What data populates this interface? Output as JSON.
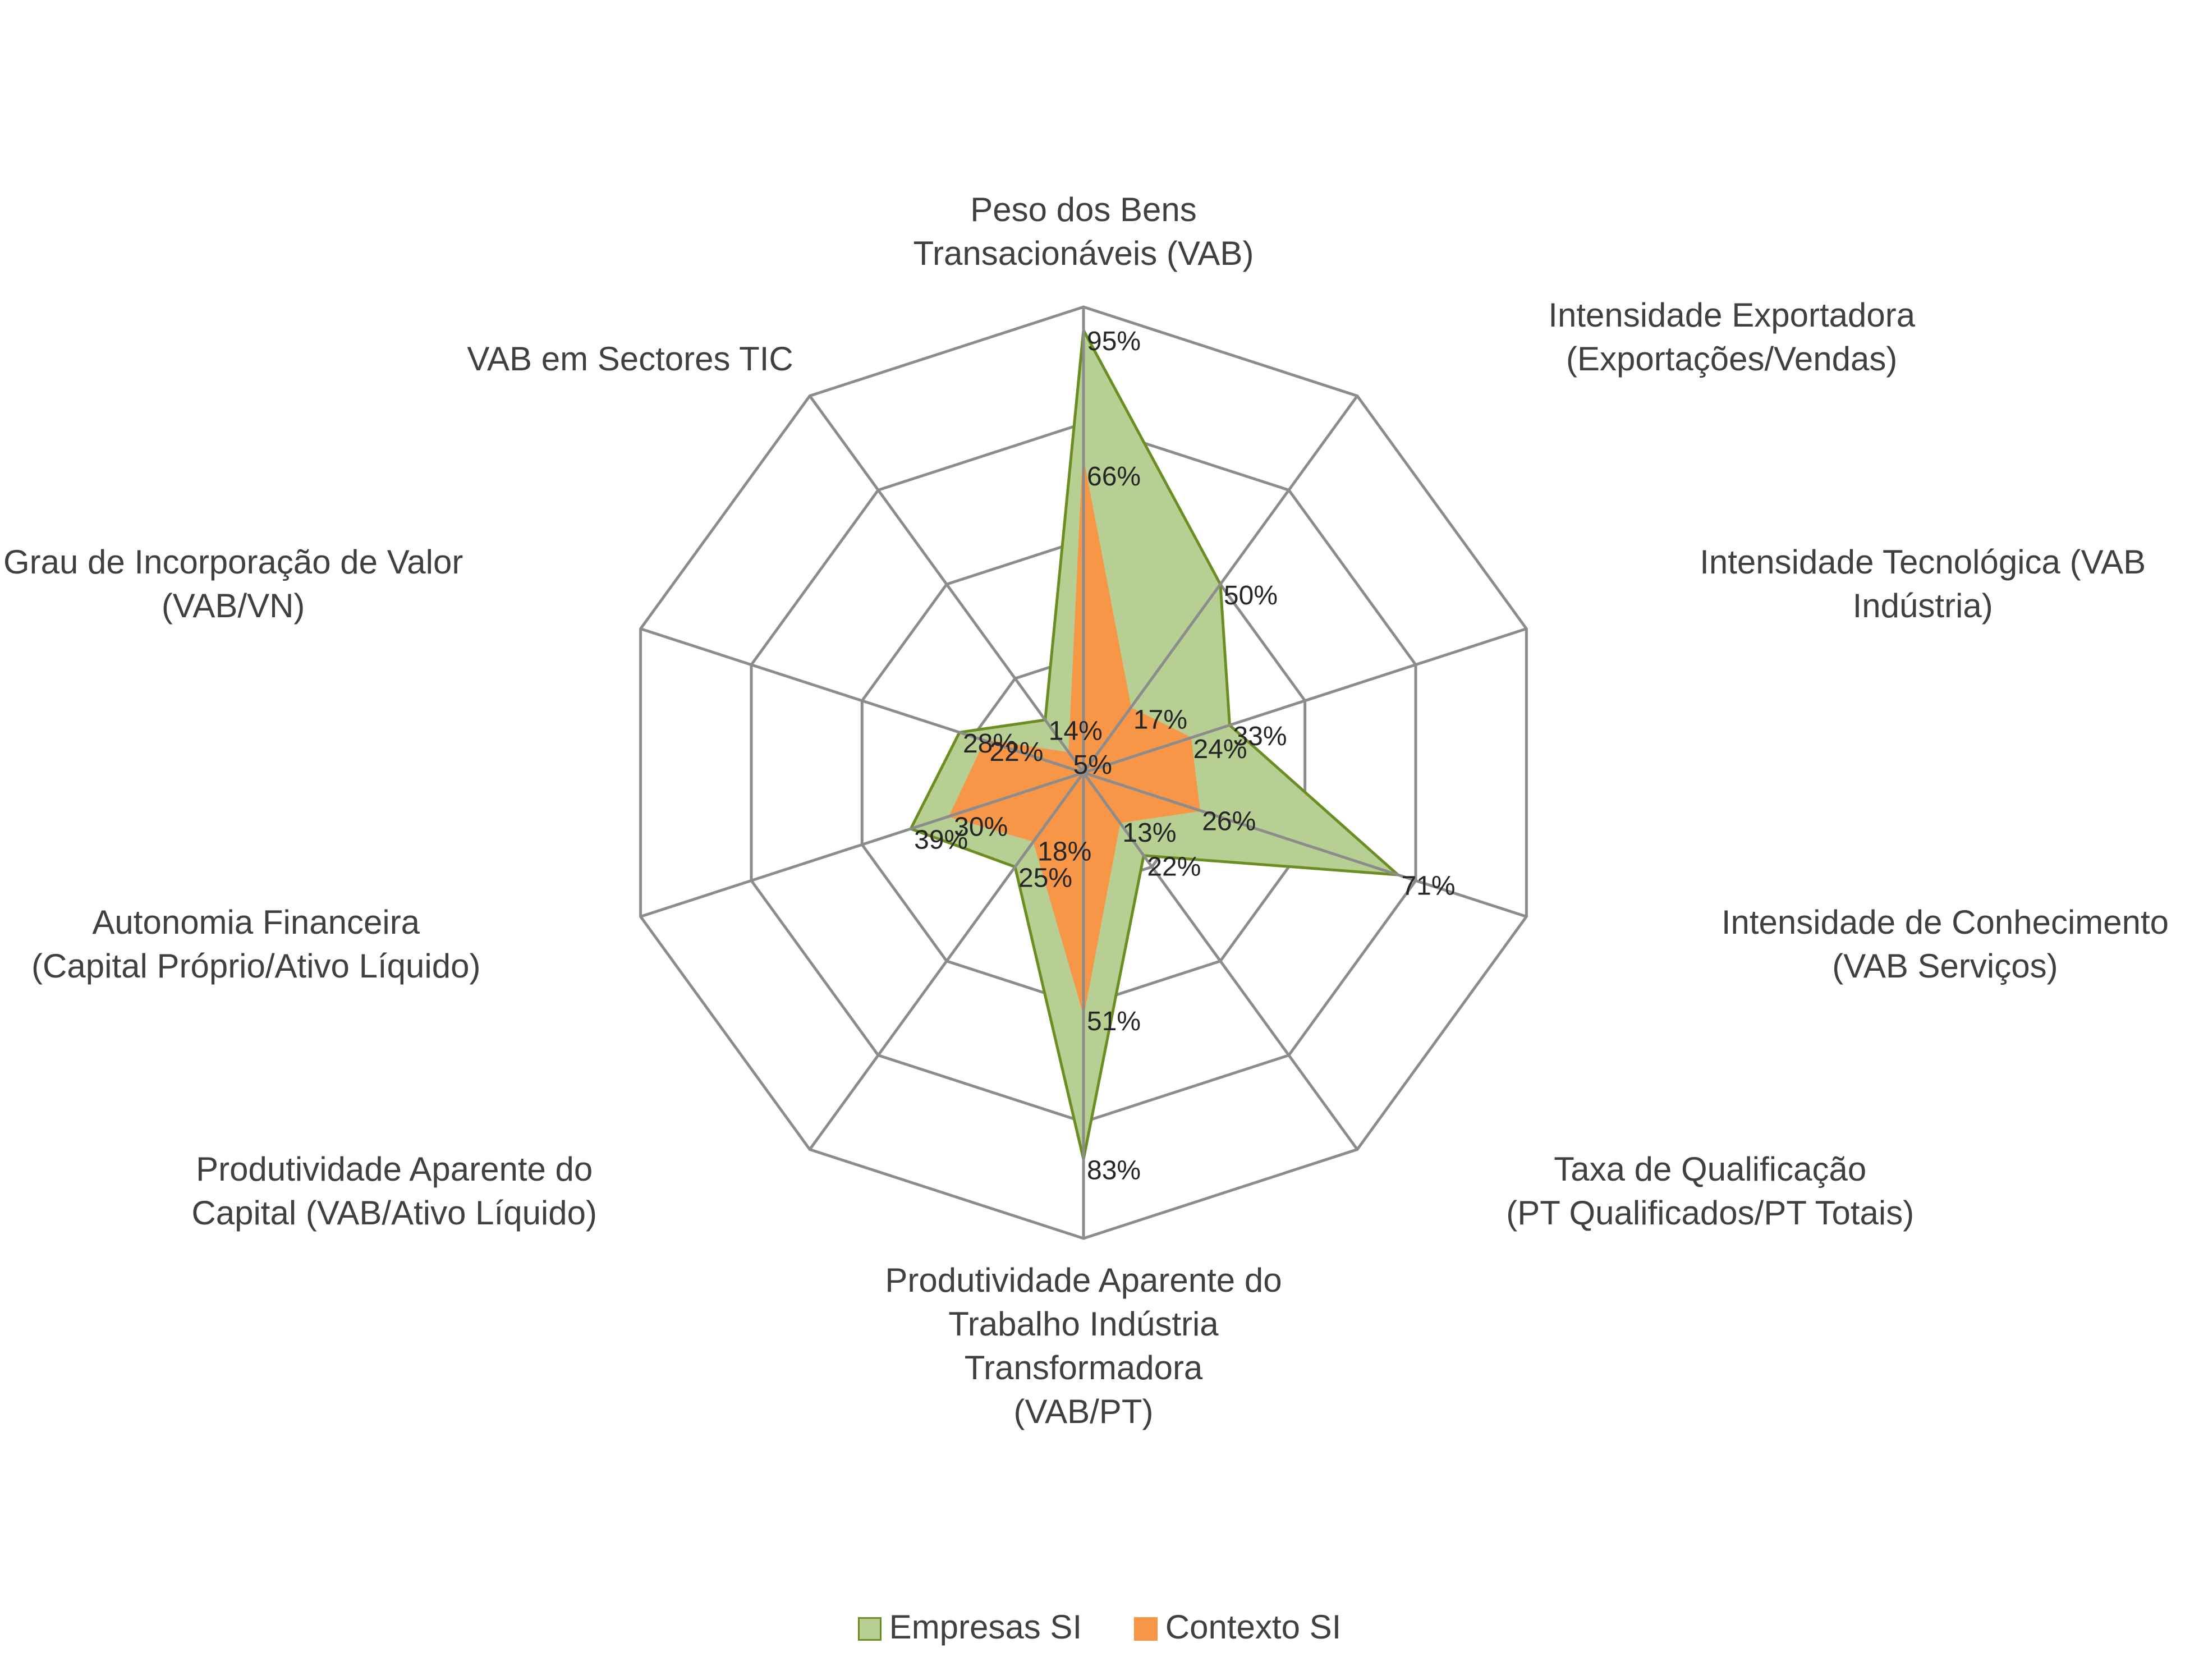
{
  "chart_data": {
    "type": "radar",
    "axes": [
      [
        "Peso dos Bens",
        "Transacionáveis (VAB)"
      ],
      [
        "Intensidade Exportadora",
        "(Exportações/Vendas)"
      ],
      [
        "Intensidade Tecnológica (VAB",
        "Indústria)"
      ],
      [
        "Intensidade de Conhecimento",
        "(VAB Serviços)"
      ],
      [
        "Taxa de Qualificação",
        "(PT Qualificados/PT Totais)"
      ],
      [
        "Produtividade Aparente do",
        "Trabalho Indústria",
        "Transformadora",
        "(VAB/PT)"
      ],
      [
        "Produtividade Aparente do",
        "Capital (VAB/Ativo Líquido)"
      ],
      [
        "Autonomia Financeira",
        "(Capital Próprio/Ativo Líquido)"
      ],
      [
        "Grau de Incorporação de Valor",
        "(VAB/VN)"
      ],
      [
        "VAB em Sectores TIC"
      ]
    ],
    "series": [
      {
        "name": "Empresas SI",
        "values": [
          95,
          50,
          33,
          71,
          22,
          83,
          25,
          39,
          28,
          14
        ],
        "labels": [
          "95%",
          "50%",
          "33%",
          "71%",
          "22%",
          "83%",
          "25%",
          "39%",
          "28%",
          "14%"
        ],
        "fill": "#b8cf93",
        "stroke": "#6b8e23"
      },
      {
        "name": "Contexto SI",
        "values": [
          66,
          17,
          24,
          26,
          13,
          51,
          18,
          30,
          22,
          5
        ],
        "labels": [
          "66%",
          "17%",
          "24%",
          "26%",
          "13%",
          "51%",
          "18%",
          "30%",
          "22%",
          "5%"
        ],
        "fill": "#f79646",
        "stroke": "#f79646"
      }
    ],
    "rmax": 100,
    "gridlines": 4,
    "legend_position": "bottom"
  }
}
